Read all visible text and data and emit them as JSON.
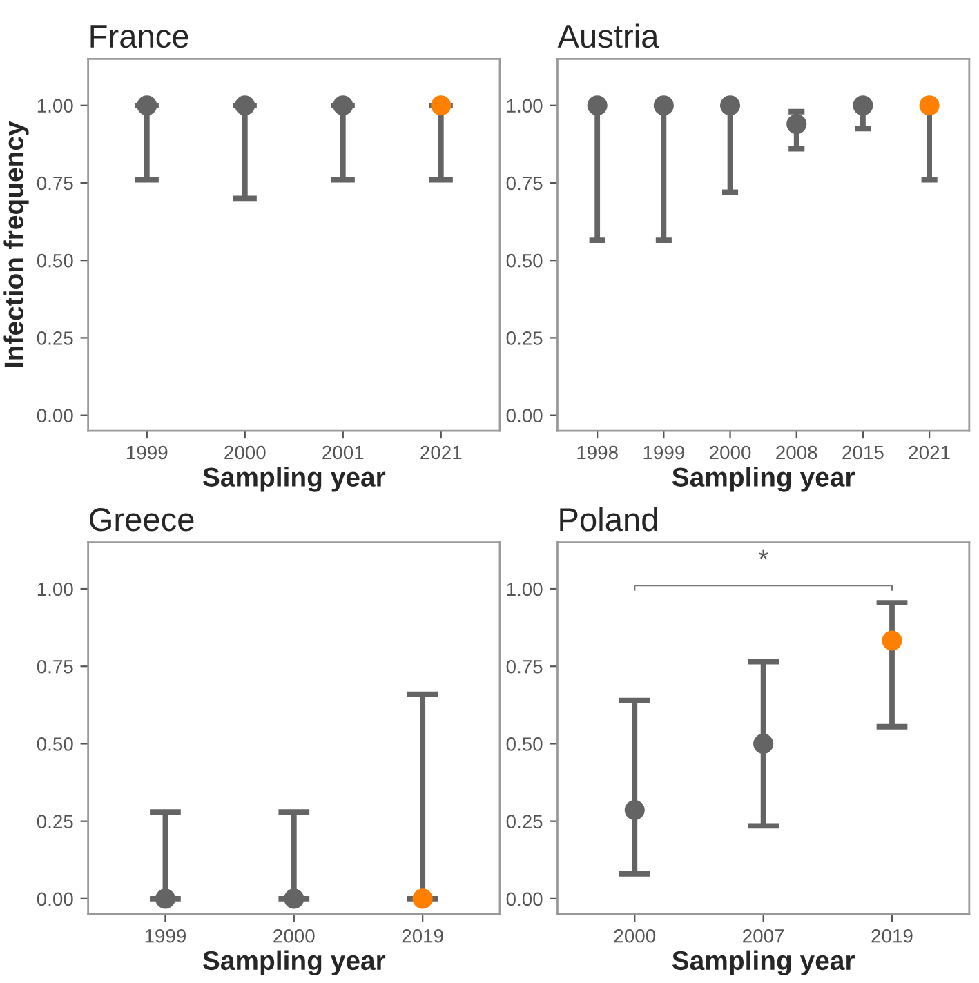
{
  "chart_data": [
    {
      "type": "scatter",
      "title": "France",
      "xlabel": "Sampling year",
      "ylabel": "Infection frequency",
      "categories": [
        "1999",
        "2000",
        "2001",
        "2021"
      ],
      "values": [
        1.0,
        1.0,
        1.0,
        1.0
      ],
      "colors": [
        "#646464",
        "#646464",
        "#646464",
        "#ff7f00"
      ],
      "errors": [
        [
          0.76,
          1.0
        ],
        [
          0.7,
          1.0
        ],
        [
          0.76,
          1.0
        ],
        [
          0.76,
          1.0
        ]
      ],
      "ylim": [
        -0.05,
        1.15
      ],
      "yticks": [
        {
          "value": 0,
          "label": "0.00"
        },
        {
          "value": 0.25,
          "label": "0.25"
        },
        {
          "value": 0.5,
          "label": "0.50"
        },
        {
          "value": 0.75,
          "label": "0.75"
        },
        {
          "value": 1,
          "label": "1.00"
        }
      ],
      "marker": "circle"
    },
    {
      "type": "scatter",
      "title": "Austria",
      "xlabel": "Sampling year",
      "categories": [
        "1998",
        "1999",
        "2000",
        "2008",
        "2015",
        "2021"
      ],
      "values": [
        1.0,
        1.0,
        1.0,
        0.94,
        1.0,
        1.0
      ],
      "colors": [
        "#646464",
        "#646464",
        "#646464",
        "#646464",
        "#646464",
        "#ff7f00"
      ],
      "errors": [
        [
          0.565,
          1.0
        ],
        [
          0.565,
          1.0
        ],
        [
          0.72,
          1.0
        ],
        [
          0.86,
          0.98
        ],
        [
          0.925,
          1.0
        ],
        [
          0.76,
          1.0
        ]
      ],
      "ylim": [
        -0.05,
        1.15
      ],
      "yticks": [
        {
          "value": 0,
          "label": "0.00"
        },
        {
          "value": 0.25,
          "label": "0.25"
        },
        {
          "value": 0.5,
          "label": "0.50"
        },
        {
          "value": 0.75,
          "label": "0.75"
        },
        {
          "value": 1,
          "label": "1.00"
        }
      ],
      "marker": "circle"
    },
    {
      "type": "scatter",
      "title": "Greece",
      "xlabel": "Sampling year",
      "categories": [
        "1999",
        "2000",
        "2019"
      ],
      "values": [
        0.0,
        0.0,
        0.0
      ],
      "colors": [
        "#646464",
        "#646464",
        "#ff7f00"
      ],
      "errors": [
        [
          0.0,
          0.28
        ],
        [
          0.0,
          0.28
        ],
        [
          0.0,
          0.66
        ]
      ],
      "ylim": [
        -0.05,
        1.15
      ],
      "yticks": [
        {
          "value": 0,
          "label": "0.00"
        },
        {
          "value": 0.25,
          "label": "0.25"
        },
        {
          "value": 0.5,
          "label": "0.50"
        },
        {
          "value": 0.75,
          "label": "0.75"
        },
        {
          "value": 1,
          "label": "1.00"
        }
      ],
      "marker": "circle"
    },
    {
      "type": "scatter",
      "title": "Poland",
      "xlabel": "Sampling year",
      "categories": [
        "2000",
        "2007",
        "2019"
      ],
      "values": [
        0.286,
        0.5,
        0.833
      ],
      "colors": [
        "#646464",
        "#646464",
        "#ff7f00"
      ],
      "errors": [
        [
          0.08,
          0.64
        ],
        [
          0.235,
          0.765
        ],
        [
          0.555,
          0.955
        ]
      ],
      "ylim": [
        -0.05,
        1.15
      ],
      "yticks": [
        {
          "value": 0,
          "label": "0.00"
        },
        {
          "value": 0.25,
          "label": "0.25"
        },
        {
          "value": 0.5,
          "label": "0.50"
        },
        {
          "value": 0.75,
          "label": "0.75"
        },
        {
          "value": 1,
          "label": "1.00"
        }
      ],
      "marker": "circle",
      "annotations": [
        "*"
      ]
    }
  ]
}
